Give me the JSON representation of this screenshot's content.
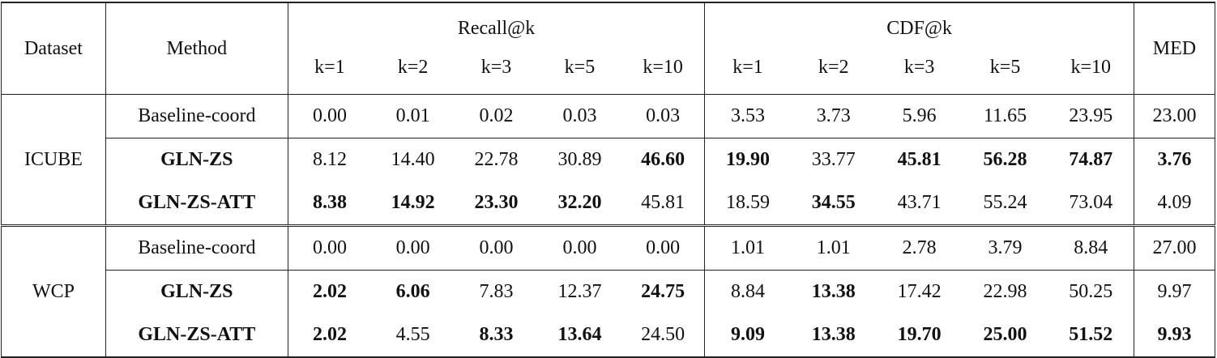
{
  "table": {
    "headers": {
      "dataset": "Dataset",
      "method": "Method",
      "recall_group": "Recall@k",
      "cdf_group": "CDF@k",
      "med": "MED",
      "k_labels": [
        "k=1",
        "k=2",
        "k=3",
        "k=5",
        "k=10"
      ]
    },
    "groups": [
      {
        "dataset": "ICUBE",
        "rows": [
          {
            "method": "Baseline-coord",
            "method_bold": false,
            "values": [
              "0.00",
              "0.01",
              "0.02",
              "0.03",
              "0.03",
              "3.53",
              "3.73",
              "5.96",
              "11.65",
              "23.95",
              "23.00"
            ],
            "bold": [
              false,
              false,
              false,
              false,
              false,
              false,
              false,
              false,
              false,
              false,
              false
            ]
          },
          {
            "method": "GLN-ZS",
            "method_bold": true,
            "values": [
              "8.12",
              "14.40",
              "22.78",
              "30.89",
              "46.60",
              "19.90",
              "33.77",
              "45.81",
              "56.28",
              "74.87",
              "3.76"
            ],
            "bold": [
              false,
              false,
              false,
              false,
              true,
              true,
              false,
              true,
              true,
              true,
              true
            ]
          },
          {
            "method": "GLN-ZS-ATT",
            "method_bold": true,
            "values": [
              "8.38",
              "14.92",
              "23.30",
              "32.20",
              "45.81",
              "18.59",
              "34.55",
              "43.71",
              "55.24",
              "73.04",
              "4.09"
            ],
            "bold": [
              true,
              true,
              true,
              true,
              false,
              false,
              true,
              false,
              false,
              false,
              false
            ]
          }
        ]
      },
      {
        "dataset": "WCP",
        "rows": [
          {
            "method": "Baseline-coord",
            "method_bold": false,
            "values": [
              "0.00",
              "0.00",
              "0.00",
              "0.00",
              "0.00",
              "1.01",
              "1.01",
              "2.78",
              "3.79",
              "8.84",
              "27.00"
            ],
            "bold": [
              false,
              false,
              false,
              false,
              false,
              false,
              false,
              false,
              false,
              false,
              false
            ]
          },
          {
            "method": "GLN-ZS",
            "method_bold": true,
            "values": [
              "2.02",
              "6.06",
              "7.83",
              "12.37",
              "24.75",
              "8.84",
              "13.38",
              "17.42",
              "22.98",
              "50.25",
              "9.97"
            ],
            "bold": [
              true,
              true,
              false,
              false,
              true,
              false,
              true,
              false,
              false,
              false,
              false
            ]
          },
          {
            "method": "GLN-ZS-ATT",
            "method_bold": true,
            "values": [
              "2.02",
              "4.55",
              "8.33",
              "13.64",
              "24.50",
              "9.09",
              "13.38",
              "19.70",
              "25.00",
              "51.52",
              "9.93"
            ],
            "bold": [
              true,
              false,
              true,
              true,
              false,
              true,
              true,
              true,
              true,
              true,
              true
            ]
          }
        ]
      }
    ]
  }
}
